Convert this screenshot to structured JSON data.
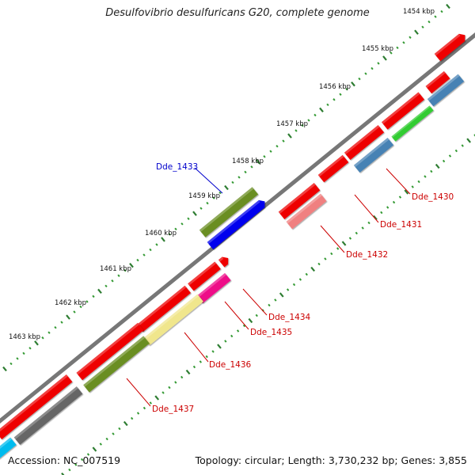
{
  "title": "Desulfovibrio desulfuricans G20, complete genome",
  "footer": {
    "accession": "Accession: NC_007519",
    "summary": "Topology: circular; Length: 3,730,232 bp; Genes: 3,855"
  },
  "scale_labels": [
    "1454 kbp",
    "1455 kbp",
    "1456 kbp",
    "1457 kbp",
    "1458 kbp",
    "1459 kbp",
    "1460 kbp",
    "1461 kbp",
    "1462 kbp",
    "1463 kbp"
  ],
  "gene_labels": [
    {
      "text": "Dde_1433",
      "color": "#0000cc"
    },
    {
      "text": "Dde_1430",
      "color": "#cc0000"
    },
    {
      "text": "Dde_1431",
      "color": "#cc0000"
    },
    {
      "text": "Dde_1432",
      "color": "#cc0000"
    },
    {
      "text": "Dde_1434",
      "color": "#cc0000"
    },
    {
      "text": "Dde_1435",
      "color": "#cc0000"
    },
    {
      "text": "Dde_1436",
      "color": "#cc0000"
    },
    {
      "text": "Dde_1437",
      "color": "#cc0000"
    }
  ],
  "colors": {
    "backbone": "#777777",
    "forward_cds": "#ee0000",
    "tick": "#339933",
    "olive": "#6b8e23",
    "blue": "#0000ee",
    "steelblue": "#4682b4",
    "green": "#33cc33",
    "pink": "#f08080",
    "magenta": "#ee1188",
    "khaki": "#f0e68c",
    "gray": "#666666",
    "cyan": "#00bbee"
  }
}
